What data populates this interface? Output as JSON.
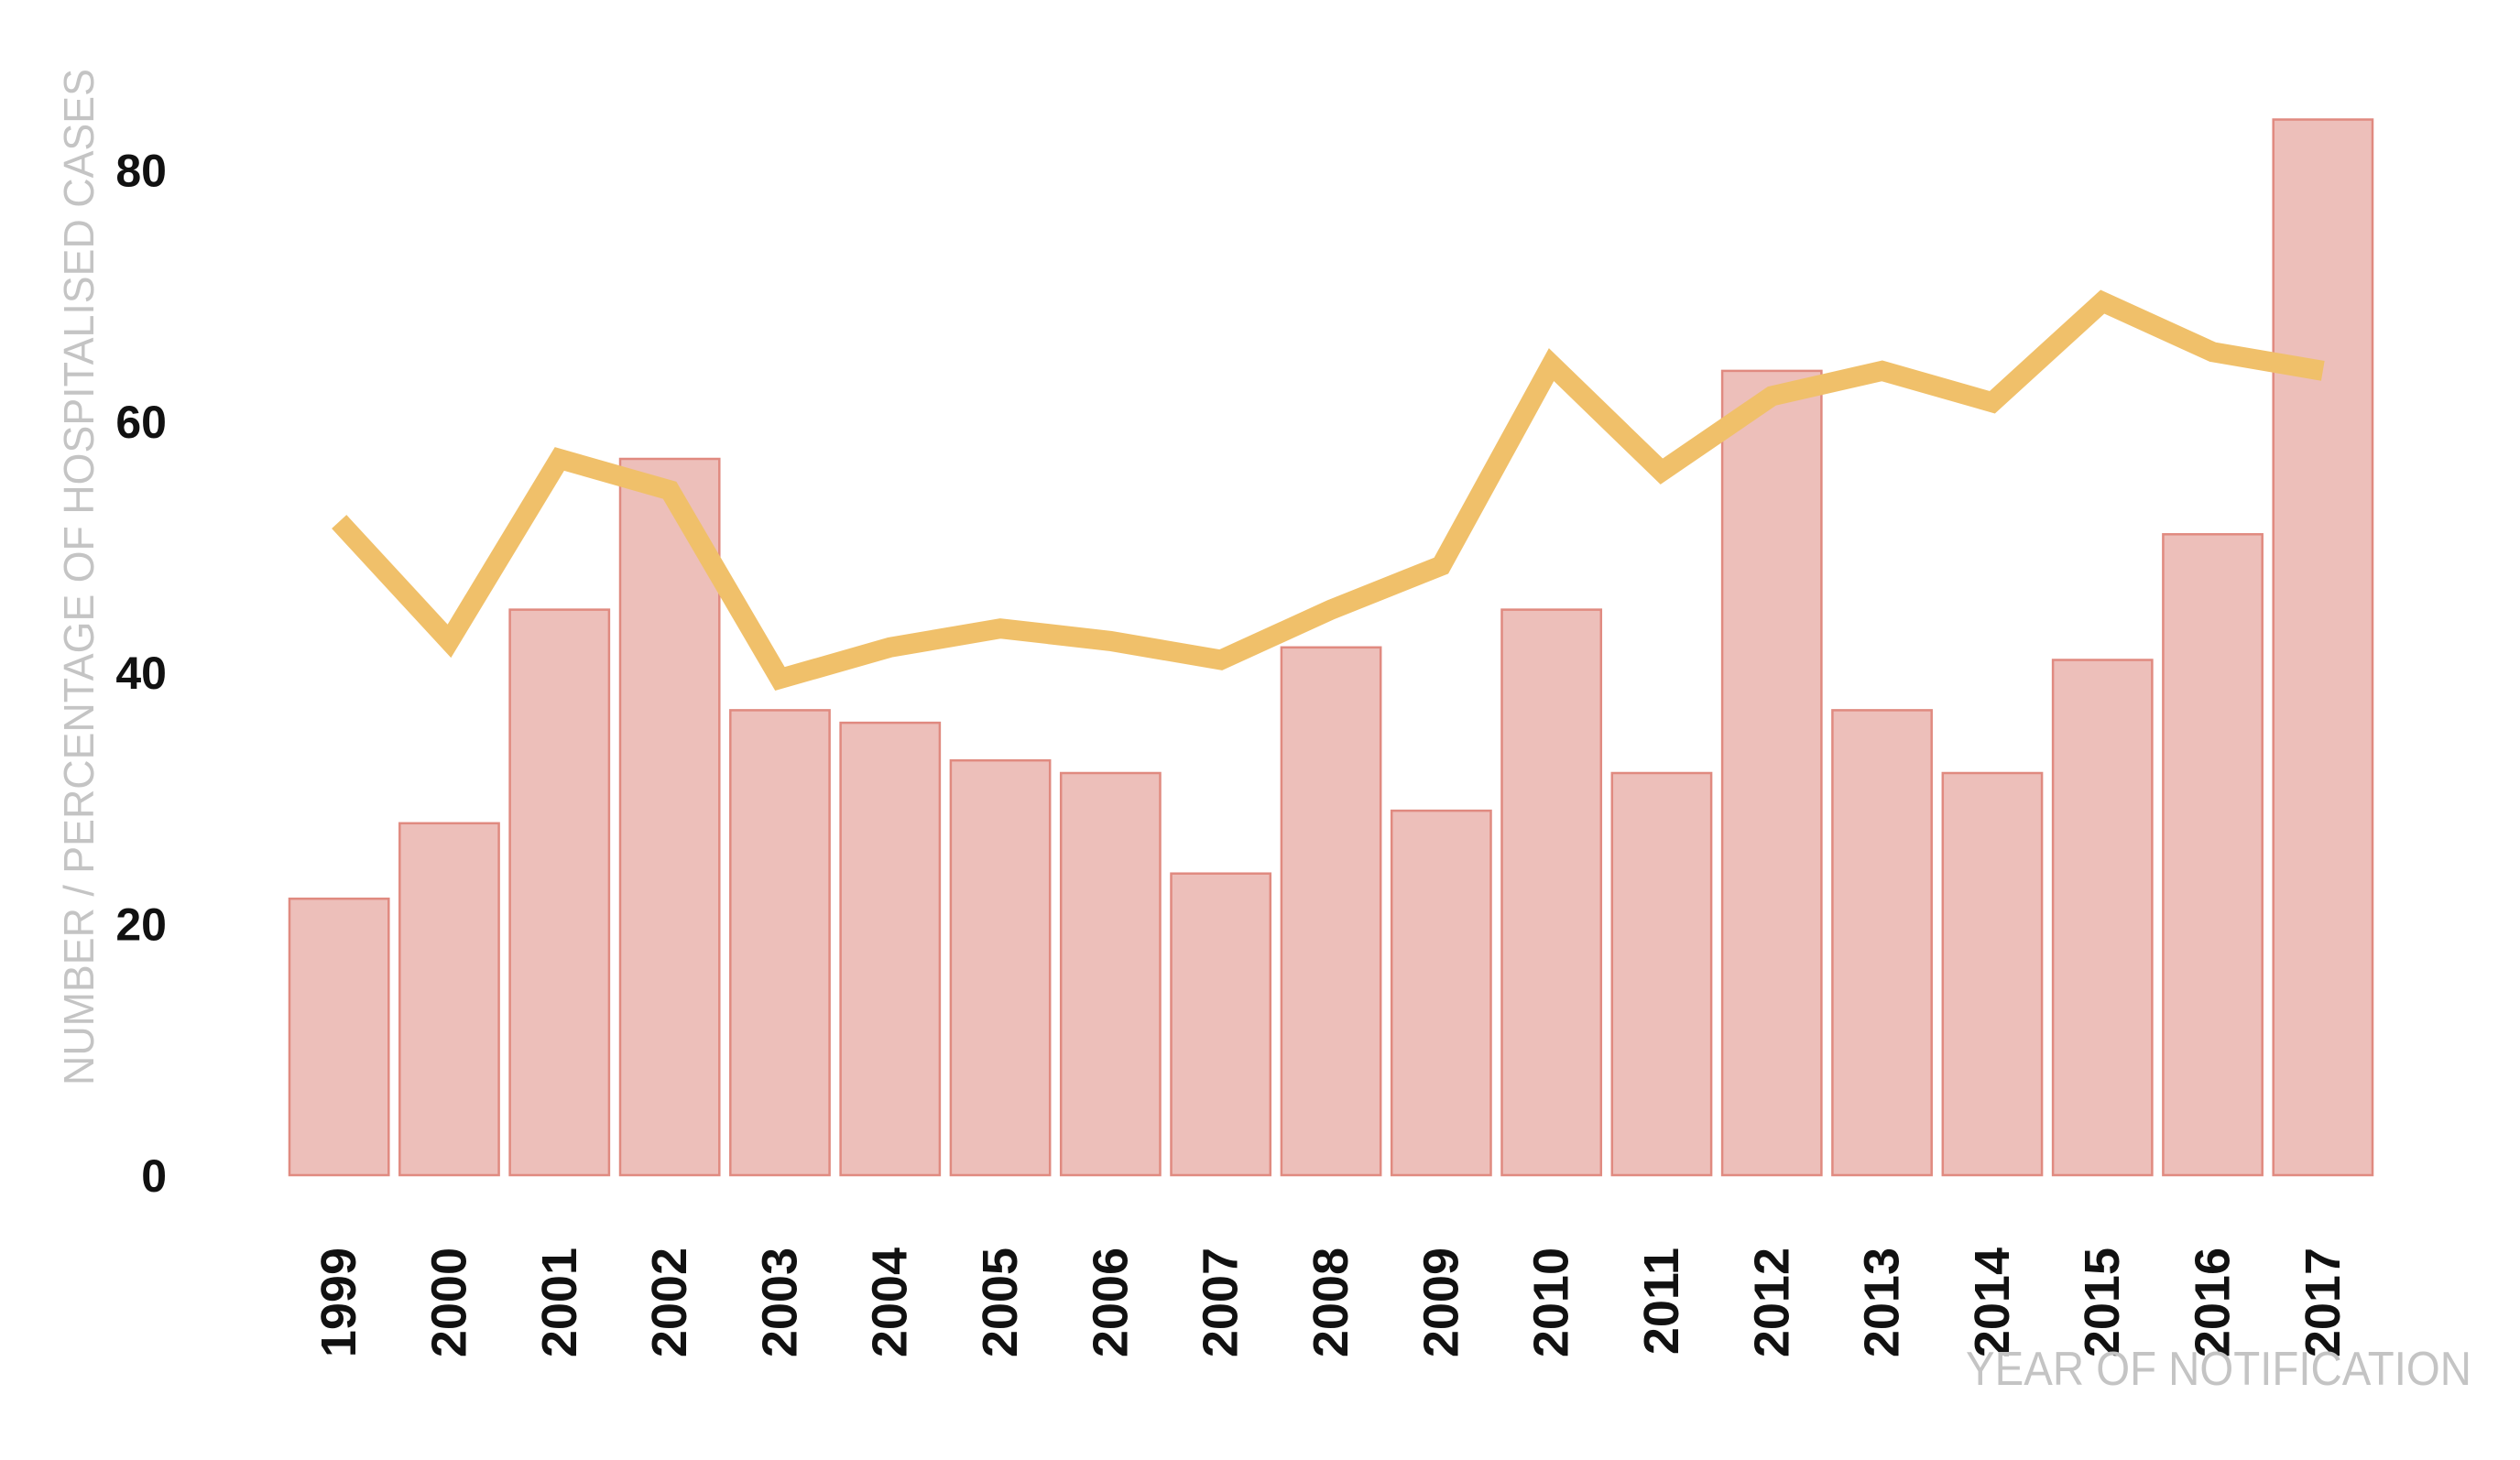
{
  "chart_data": {
    "type": "bar",
    "title": "",
    "xlabel": "YEAR OF NOTIFICATION",
    "ylabel": "NUMBER / PERCENTAGE OF HOSPITALISED CASES",
    "ylim": [
      0,
      84
    ],
    "yticks": [
      0,
      20,
      40,
      60,
      80
    ],
    "grid": false,
    "legend": "none",
    "categories": [
      "1999",
      "2000",
      "2001",
      "2002",
      "2003",
      "2004",
      "2005",
      "2006",
      "2007",
      "2008",
      "2009",
      "2010",
      "2011",
      "2012",
      "2013",
      "2014",
      "2015",
      "2016",
      "2017"
    ],
    "series": [
      {
        "kind": "bar",
        "color": "#edbfba",
        "edge_color": "#e08a80",
        "values": [
          22,
          28,
          45,
          57,
          37,
          36,
          33,
          32,
          24,
          42,
          29,
          45,
          32,
          64,
          37,
          32,
          41,
          51,
          84
        ]
      },
      {
        "kind": "line",
        "color": "#f0c06a",
        "values": [
          52,
          42.5,
          57,
          54.5,
          39.5,
          42,
          43.5,
          42.5,
          41,
          45,
          48.5,
          64.5,
          56,
          62,
          64,
          61.5,
          69.5,
          65.5,
          64
        ]
      }
    ]
  }
}
